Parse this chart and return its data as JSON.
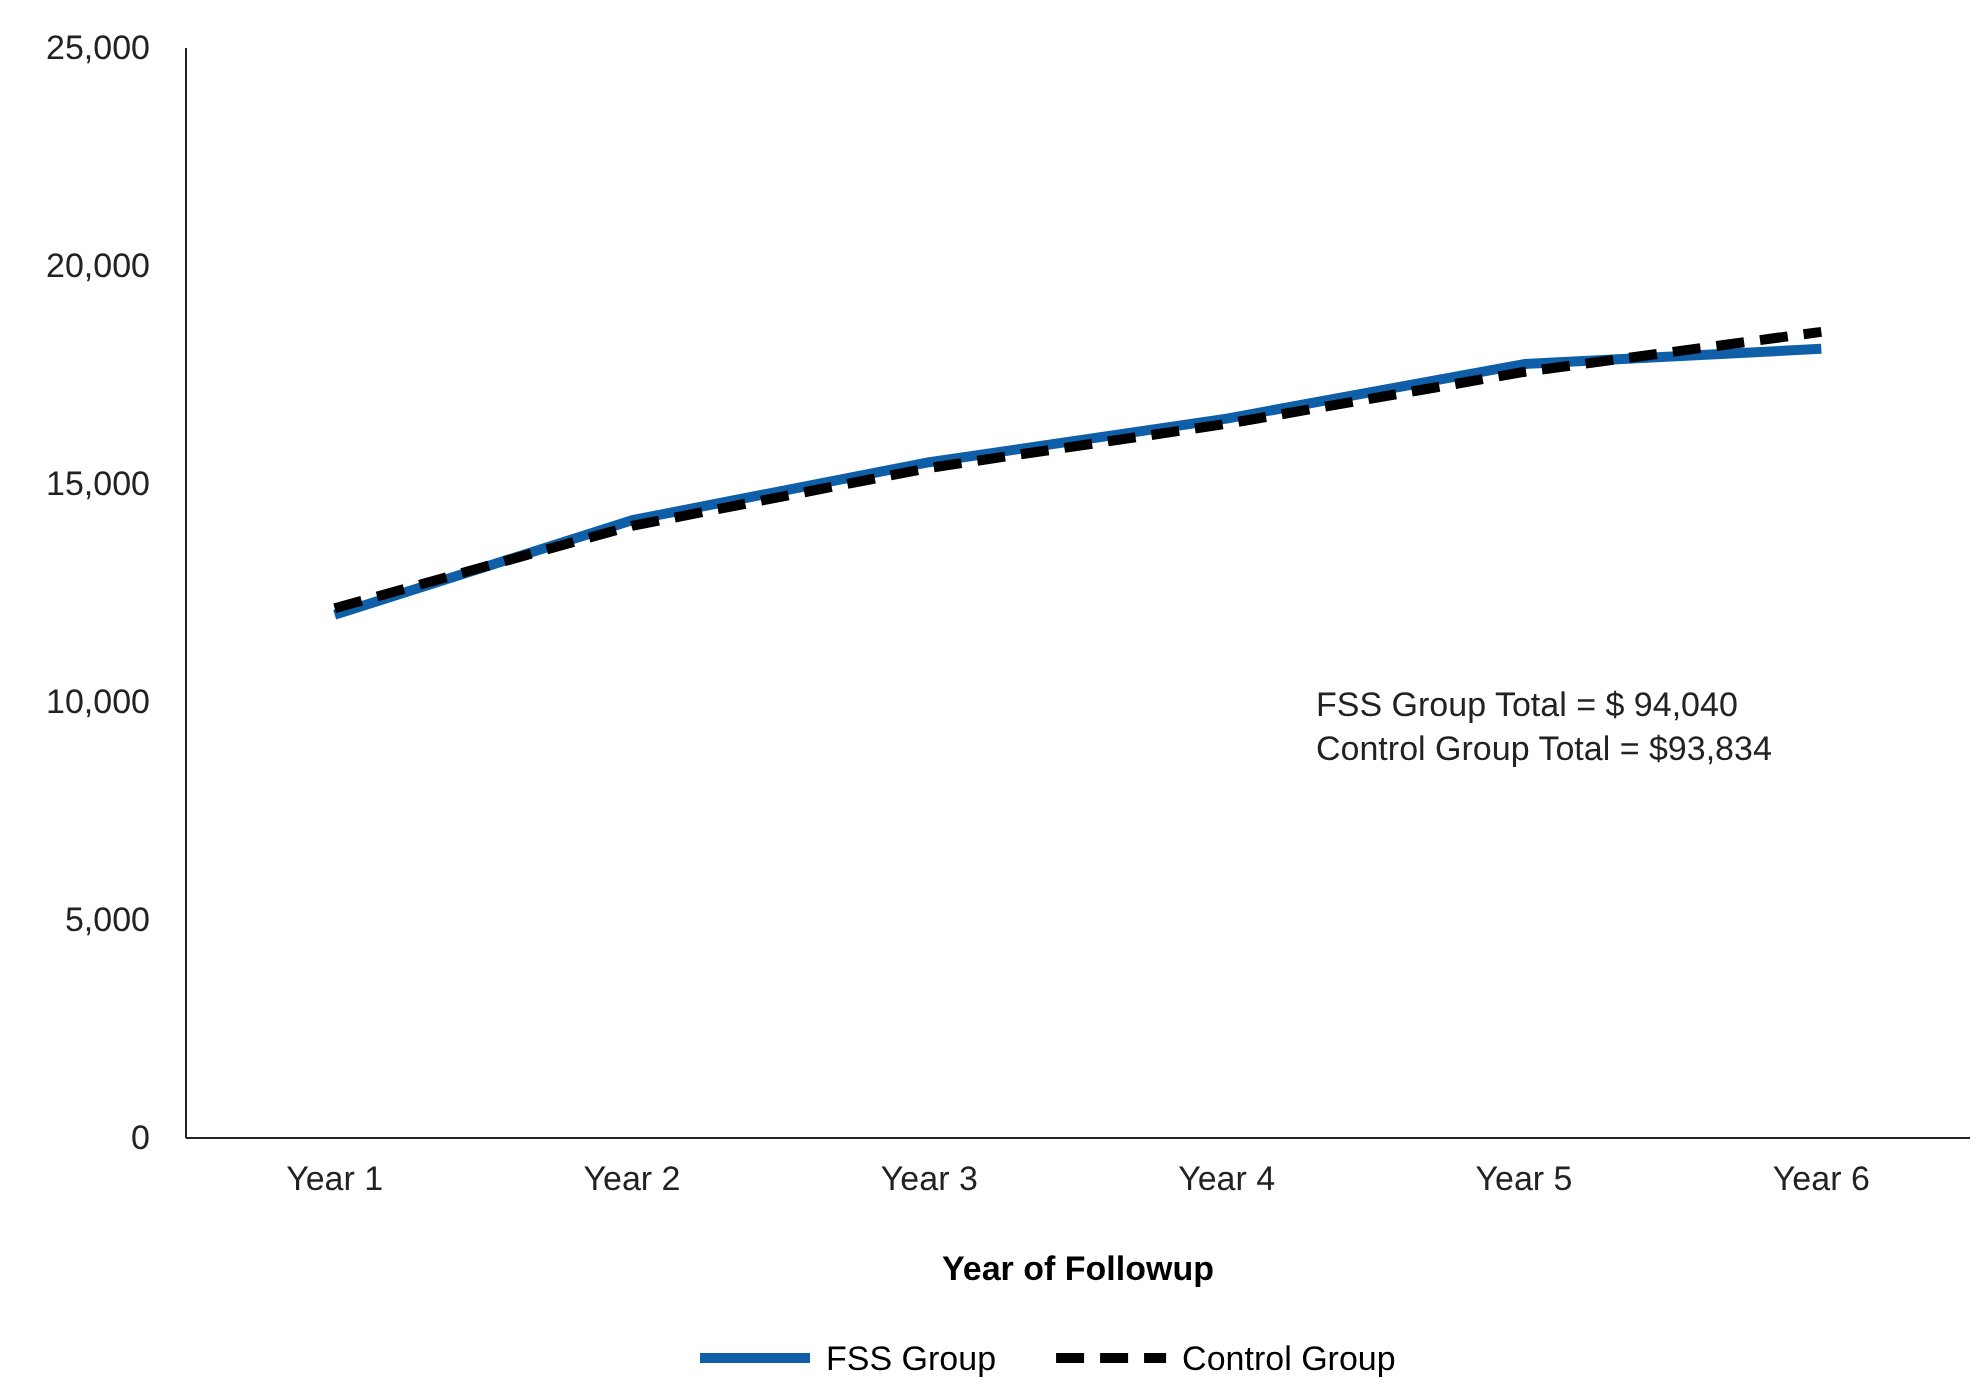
{
  "chart_data": {
    "type": "line",
    "xlabel": "Year of Followup",
    "categories": [
      "Year 1",
      "Year 2",
      "Year 3",
      "Year 4",
      "Year 5",
      "Year 6"
    ],
    "ylim": [
      0,
      25000
    ],
    "yticks": [
      {
        "value": 0,
        "label": "0"
      },
      {
        "value": 5000,
        "label": "5,000"
      },
      {
        "value": 10000,
        "label": "10,000"
      },
      {
        "value": 15000,
        "label": "15,000"
      },
      {
        "value": 20000,
        "label": "20,000"
      },
      {
        "value": 25000,
        "label": "25,000"
      }
    ],
    "series": [
      {
        "name": "FSS Group",
        "color": "#0f5fa8",
        "line_style": "solid",
        "values": [
          12000,
          14170,
          15500,
          16500,
          17750,
          18100
        ]
      },
      {
        "name": "Control Group",
        "color": "#000000",
        "line_style": "dashed",
        "values": [
          12150,
          14040,
          15370,
          16380,
          17570,
          18490
        ]
      }
    ],
    "annotations": [
      "FSS Group Total = $ 94,040",
      "Control Group Total = $93,834"
    ],
    "legend": "bottom",
    "grid": false
  }
}
